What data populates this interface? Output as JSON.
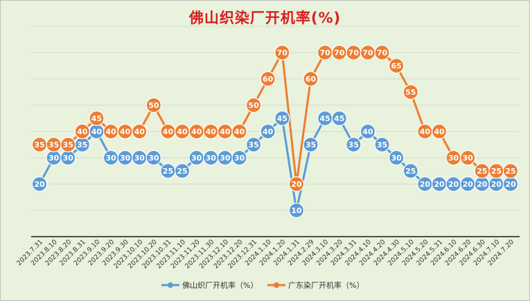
{
  "chart_data": {
    "type": "line",
    "title": "佛山织染厂开机率(%)",
    "categories": [
      "2023.7.31",
      "2023.8.10",
      "2023.8.20",
      "2023.8.31",
      "2023.9.10",
      "2023.9.20",
      "2023.9.30",
      "2023.10.10",
      "2023.10.20",
      "2023.10.31",
      "2023.11.10",
      "2023.11.20",
      "2023.11.30",
      "2023.12.10",
      "2023.12.20",
      "2023.12.31",
      "2024.1.10",
      "2024.1.20",
      "2024.1.31",
      "2024.2.29",
      "2024.3.10",
      "2024.3.20",
      "2024.3.31",
      "2024.4.10",
      "2024.4.20",
      "2024.4.30",
      "2024.5.10",
      "2024.5.20",
      "2024.5.31",
      "2024.6.10",
      "2024.6.20",
      "2024.6.30",
      "2024.7.10",
      "2024.7.20"
    ],
    "series": [
      {
        "name": "佛山织厂开机率（%）",
        "color": "#5b9bd5",
        "values": [
          20,
          30,
          30,
          35,
          40,
          30,
          30,
          30,
          30,
          25,
          25,
          30,
          30,
          30,
          30,
          35,
          40,
          45,
          10,
          35,
          45,
          45,
          35,
          40,
          35,
          30,
          25,
          20,
          20,
          20,
          20,
          20,
          20,
          20
        ]
      },
      {
        "name": "广东染厂开机率（%）",
        "color": "#ed7d31",
        "values": [
          35,
          35,
          35,
          40,
          45,
          40,
          40,
          40,
          50,
          40,
          40,
          40,
          40,
          40,
          40,
          50,
          60,
          70,
          20,
          60,
          70,
          70,
          70,
          70,
          70,
          65,
          55,
          40,
          40,
          30,
          30,
          25,
          25,
          25
        ]
      }
    ],
    "ylim": [
      0,
      80
    ],
    "grid": true,
    "legend": "bottom"
  }
}
